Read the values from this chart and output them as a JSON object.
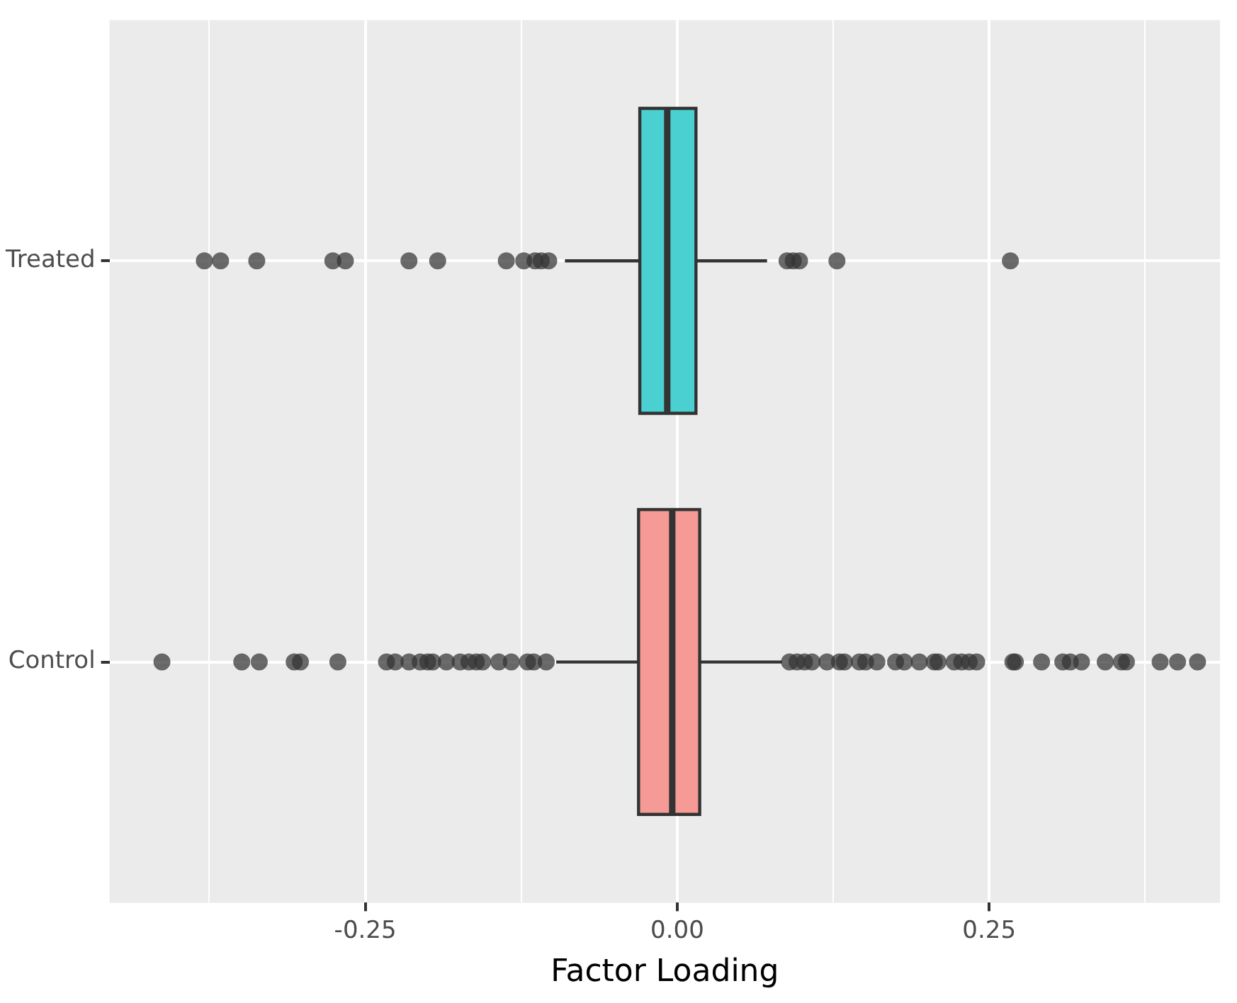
{
  "chart_data": {
    "type": "box",
    "orientation": "horizontal",
    "xlabel": "Factor Loading",
    "categories": [
      "Treated",
      "Control"
    ],
    "colors": [
      "#4ad0d1",
      "#f59a95"
    ],
    "boxes": [
      {
        "low": -0.09,
        "q1": -0.03,
        "median": -0.008,
        "q3": 0.015,
        "high": 0.072,
        "outliers": [
          -0.379,
          -0.366,
          -0.337,
          -0.276,
          -0.266,
          -0.215,
          -0.192,
          -0.137,
          -0.123,
          -0.114,
          -0.109,
          -0.103,
          0.088,
          0.093,
          0.098,
          0.128,
          0.267
        ]
      },
      {
        "low": -0.097,
        "q1": -0.031,
        "median": -0.004,
        "q3": 0.018,
        "high": 0.084,
        "outliers": [
          -0.413,
          -0.349,
          -0.335,
          -0.307,
          -0.302,
          -0.272,
          -0.233,
          -0.226,
          -0.215,
          -0.206,
          -0.2,
          -0.196,
          -0.185,
          -0.174,
          -0.167,
          -0.161,
          -0.156,
          -0.143,
          -0.133,
          -0.12,
          -0.115,
          -0.105,
          0.09,
          0.096,
          0.102,
          0.108,
          0.12,
          0.13,
          0.134,
          0.146,
          0.151,
          0.16,
          0.175,
          0.182,
          0.194,
          0.206,
          0.209,
          0.222,
          0.228,
          0.234,
          0.24,
          0.269,
          0.271,
          0.292,
          0.309,
          0.315,
          0.324,
          0.343,
          0.356,
          0.36,
          0.387,
          0.401,
          0.417
        ]
      }
    ],
    "xlim": [
      -0.455,
      0.435
    ],
    "xticks": [
      {
        "value": -0.375,
        "label": null
      },
      {
        "value": -0.25,
        "label": "-0.25"
      },
      {
        "value": -0.125,
        "label": null
      },
      {
        "value": 0,
        "label": "0.00"
      },
      {
        "value": 0.125,
        "label": null
      },
      {
        "value": 0.25,
        "label": "0.25"
      },
      {
        "value": 0.375,
        "label": null
      }
    ],
    "grid": true,
    "legend": false
  }
}
